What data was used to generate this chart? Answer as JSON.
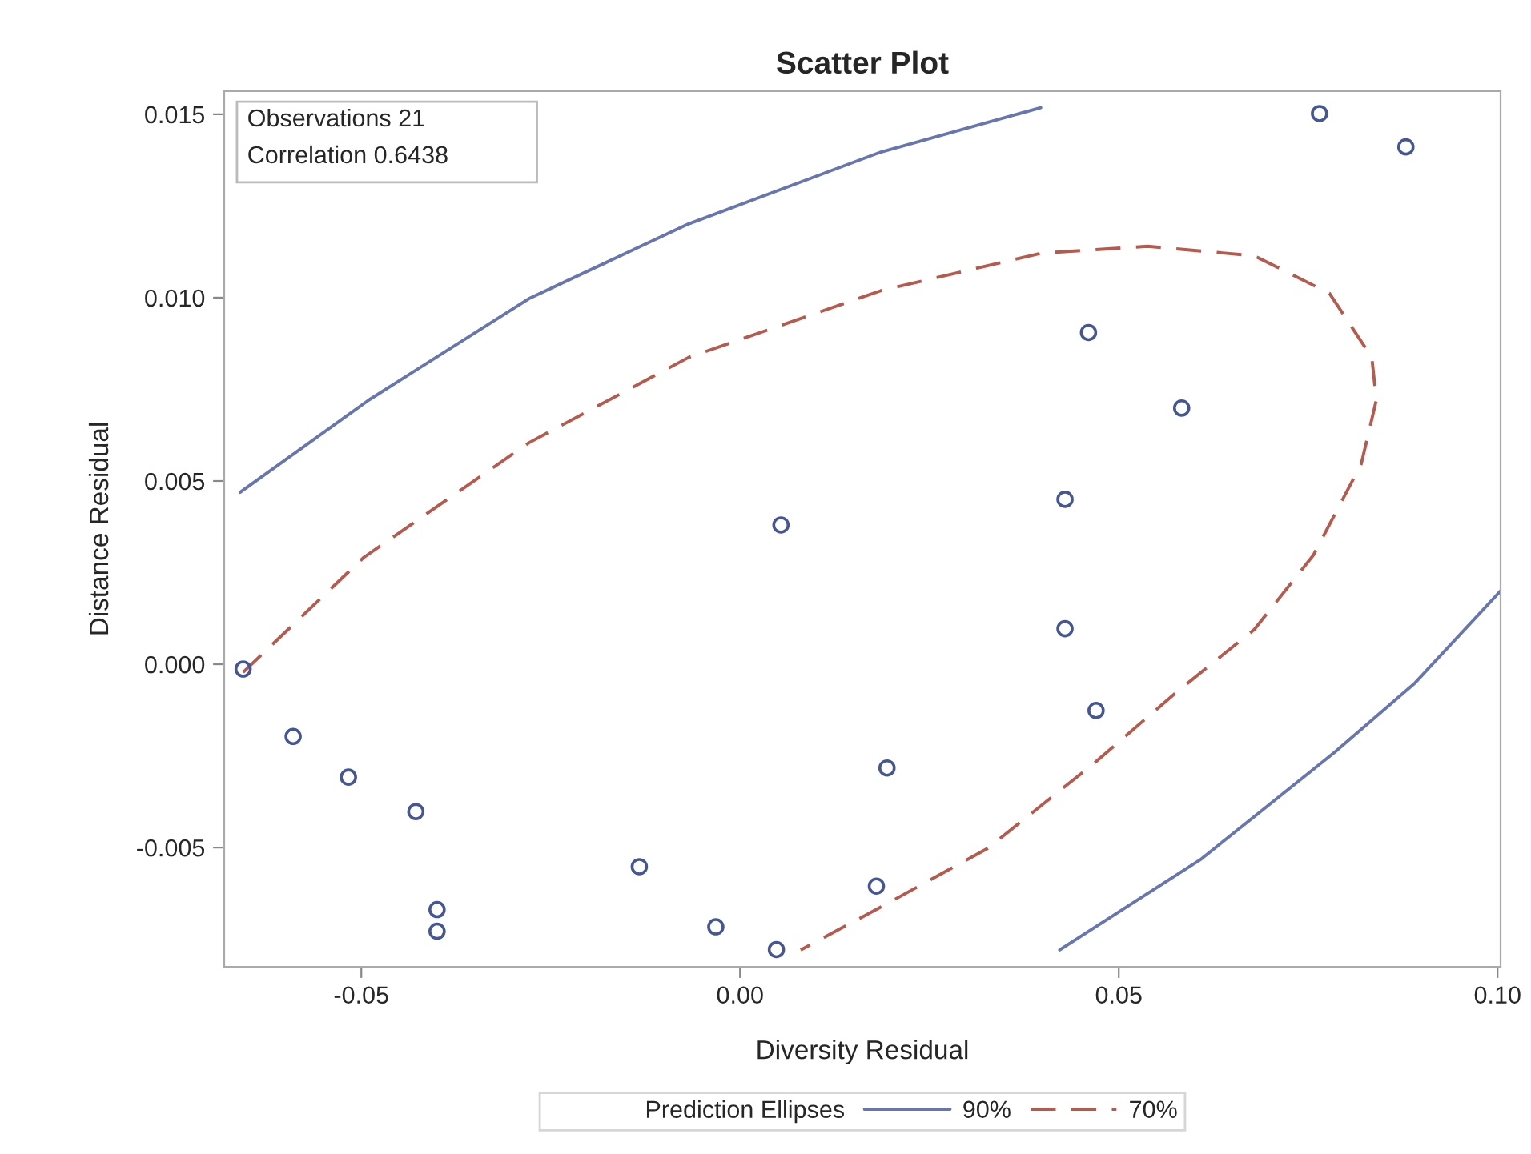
{
  "chart_data": {
    "type": "scatter",
    "title": "Scatter Plot",
    "xlabel": "Diversity Residual",
    "ylabel": "Distance Residual",
    "legend_title": "Prediction Ellipses",
    "legend": "bottom",
    "grid": false,
    "xlim": [
      -0.0681,
      0.1004
    ],
    "ylim": [
      -0.00825,
      0.01563
    ],
    "xticks": [
      {
        "value": -0.05,
        "label": "-0.05"
      },
      {
        "value": 0,
        "label": "0.00"
      },
      {
        "value": 0.05,
        "label": "0.05"
      },
      {
        "value": 0.1,
        "label": "0.10"
      }
    ],
    "yticks": [
      {
        "value": -0.005,
        "label": "-0.005"
      },
      {
        "value": 0,
        "label": "0.000"
      },
      {
        "value": 0.005,
        "label": "0.005"
      },
      {
        "value": 0.01,
        "label": "0.010"
      },
      {
        "value": 0.015,
        "label": "0.015"
      }
    ],
    "annotations": [
      "Observations 21",
      "Correlation 0.6438"
    ],
    "series": [
      {
        "color": "#445694",
        "marker": "circle",
        "x": [
          -0.0656,
          -0.059,
          -0.0517,
          -0.0428,
          -0.04,
          -0.04,
          -0.0133,
          -0.0032,
          0.0048,
          0.018,
          0.0194,
          0.0054,
          0.0429,
          0.0429,
          0.046,
          0.047,
          0.0583,
          0.0765,
          0.0879
        ],
        "values": [
          -0.00013,
          -0.00197,
          -0.00308,
          -0.00402,
          -0.00669,
          -0.00728,
          -0.00552,
          -0.00716,
          -0.00778,
          -0.00605,
          -0.00283,
          0.0038,
          0.0045,
          0.00097,
          0.00905,
          -0.00126,
          0.00699,
          0.01502,
          0.01411
        ]
      },
      {
        "type": "line",
        "name": "90%",
        "color": "#6876b0",
        "line_style": "solid",
        "marker": "none",
        "x": [
          -0.066,
          -0.049,
          -0.0279,
          -0.0068,
          0.0186,
          0.0397
        ],
        "values": [
          0.00469,
          0.00721,
          0.00997,
          0.01201,
          0.01397,
          0.01518
        ]
      },
      {
        "type": "line",
        "color": "#6876b0",
        "line_style": "solid",
        "marker": "none",
        "x": [
          0.0422,
          0.0609,
          0.0785,
          0.0891,
          0.1004
        ],
        "values": [
          -0.00779,
          -0.00531,
          -0.0024,
          -0.00051,
          0.002
        ]
      },
      {
        "type": "line",
        "name": "70%",
        "color": "#b65a4e",
        "line_style": "dashed",
        "marker": "none",
        "x": [
          -0.0656,
          -0.0497,
          -0.0279,
          -0.0068,
          0.0186,
          0.0397,
          0.0538,
          0.0679,
          0.0778,
          0.0834,
          0.084,
          0.082,
          0.0757,
          0.0679,
          0.0574,
          0.0468,
          0.0327,
          0.0186,
          0.008
        ],
        "values": [
          -0.00022,
          0.00291,
          0.00604,
          0.00837,
          0.01019,
          0.01121,
          0.0114,
          0.01114,
          0.01012,
          0.00837,
          0.00721,
          0.00546,
          0.00298,
          0.00095,
          -0.0008,
          -0.00269,
          -0.00502,
          -0.00662,
          -0.00779
        ]
      }
    ]
  }
}
